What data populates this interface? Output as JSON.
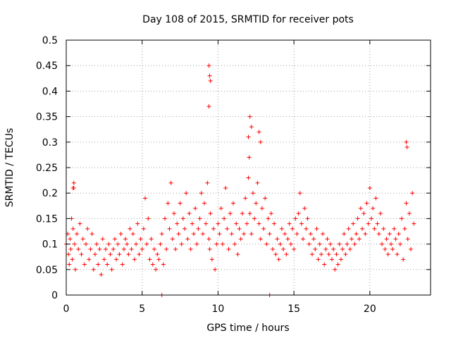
{
  "chart_data": {
    "type": "scatter",
    "title": "Day 108 of 2015, SRMTID for receiver pots",
    "xlabel": "GPS time / hours",
    "ylabel": "SRMTID / TECUs",
    "xlim": [
      0,
      24
    ],
    "ylim": [
      0,
      0.5
    ],
    "x_ticks": [
      0,
      5,
      10,
      15,
      20
    ],
    "x_tick_labels": [
      "0",
      "5",
      "10",
      "15",
      "20"
    ],
    "y_ticks": [
      0,
      0.05,
      0.1,
      0.15,
      0.2,
      0.25,
      0.3,
      0.35,
      0.4,
      0.45,
      0.5
    ],
    "y_tick_labels": [
      "0",
      "0.05",
      "0.1",
      "0.15",
      "0.2",
      "0.25",
      "0.3",
      "0.35",
      "0.4",
      "0.45",
      "0.5"
    ],
    "grid": true,
    "marker": "plus",
    "color": "#ff0000",
    "series": [
      {
        "name": "pots",
        "x": [
          0.0,
          0.1,
          0.15,
          0.2,
          0.25,
          0.3,
          0.35,
          0.4,
          0.45,
          0.5,
          0.55,
          0.6,
          0.7,
          0.8,
          0.9,
          1.0,
          1.1,
          1.2,
          1.3,
          1.4,
          1.5,
          1.6,
          1.7,
          1.8,
          1.9,
          2.0,
          2.1,
          2.2,
          2.3,
          2.4,
          2.5,
          2.6,
          2.7,
          2.8,
          2.9,
          3.0,
          3.1,
          3.2,
          3.3,
          3.4,
          3.5,
          3.6,
          3.7,
          3.8,
          3.9,
          4.0,
          4.1,
          4.2,
          4.3,
          4.4,
          4.5,
          4.6,
          4.7,
          4.8,
          4.9,
          5.0,
          5.1,
          5.2,
          5.3,
          5.4,
          5.5,
          5.6,
          5.7,
          5.8,
          5.9,
          6.0,
          6.1,
          6.2,
          6.3,
          6.4,
          6.5,
          6.6,
          6.7,
          6.8,
          6.9,
          7.0,
          7.1,
          7.2,
          7.3,
          7.4,
          7.5,
          7.6,
          7.7,
          7.8,
          7.9,
          8.0,
          8.1,
          8.2,
          8.3,
          8.4,
          8.5,
          8.6,
          8.7,
          8.8,
          8.9,
          9.0,
          9.1,
          9.2,
          9.3,
          9.4,
          9.45,
          9.5,
          9.6,
          9.7,
          9.8,
          9.9,
          10.0,
          10.1,
          10.2,
          10.3,
          10.4,
          10.5,
          10.6,
          10.7,
          10.8,
          10.9,
          11.0,
          11.1,
          11.2,
          11.3,
          11.4,
          11.5,
          11.6,
          11.7,
          11.8,
          11.9,
          12.0,
          12.05,
          12.1,
          12.2,
          12.3,
          12.4,
          12.5,
          12.6,
          12.7,
          12.8,
          12.9,
          13.0,
          13.1,
          13.2,
          13.3,
          13.4,
          13.5,
          13.6,
          13.7,
          13.8,
          13.9,
          14.0,
          14.1,
          14.2,
          14.3,
          14.4,
          14.5,
          14.6,
          14.7,
          14.8,
          14.9,
          15.0,
          15.1,
          15.2,
          15.3,
          15.4,
          15.5,
          15.6,
          15.7,
          15.8,
          15.9,
          16.0,
          16.1,
          16.2,
          16.3,
          16.4,
          16.5,
          16.6,
          16.7,
          16.8,
          16.9,
          17.0,
          17.1,
          17.2,
          17.3,
          17.4,
          17.5,
          17.6,
          17.7,
          17.8,
          17.9,
          18.0,
          18.1,
          18.2,
          18.3,
          18.4,
          18.5,
          18.6,
          18.7,
          18.8,
          18.9,
          19.0,
          19.1,
          19.2,
          19.3,
          19.4,
          19.5,
          19.6,
          19.7,
          19.8,
          19.9,
          20.0,
          20.1,
          20.2,
          20.3,
          20.4,
          20.5,
          20.6,
          20.7,
          20.8,
          20.9,
          21.0,
          21.1,
          21.2,
          21.3,
          21.4,
          21.5,
          21.6,
          21.7,
          21.8,
          21.9,
          22.0,
          22.1,
          22.2,
          22.3,
          22.4,
          22.5,
          22.6,
          22.7,
          22.8,
          22.9,
          9.4,
          9.45,
          9.5,
          9.4,
          12.1,
          12.2,
          12.0,
          12.7,
          12.8,
          22.4,
          22.45,
          6.3,
          13.4,
          0.5,
          0.45
        ],
        "y": [
          0.1,
          0.12,
          0.08,
          0.06,
          0.11,
          0.09,
          0.15,
          0.07,
          0.13,
          0.21,
          0.1,
          0.05,
          0.12,
          0.09,
          0.14,
          0.08,
          0.11,
          0.06,
          0.1,
          0.13,
          0.07,
          0.09,
          0.12,
          0.05,
          0.08,
          0.1,
          0.06,
          0.09,
          0.04,
          0.11,
          0.07,
          0.09,
          0.06,
          0.1,
          0.08,
          0.05,
          0.09,
          0.11,
          0.07,
          0.1,
          0.08,
          0.12,
          0.06,
          0.09,
          0.11,
          0.1,
          0.08,
          0.13,
          0.09,
          0.12,
          0.07,
          0.1,
          0.14,
          0.08,
          0.11,
          0.09,
          0.13,
          0.19,
          0.1,
          0.15,
          0.07,
          0.11,
          0.06,
          0.09,
          0.05,
          0.08,
          0.07,
          0.1,
          0.12,
          0.06,
          0.15,
          0.09,
          0.18,
          0.13,
          0.22,
          0.11,
          0.16,
          0.09,
          0.14,
          0.12,
          0.18,
          0.1,
          0.15,
          0.13,
          0.2,
          0.11,
          0.16,
          0.09,
          0.14,
          0.12,
          0.17,
          0.1,
          0.13,
          0.15,
          0.2,
          0.12,
          0.18,
          0.14,
          0.22,
          0.11,
          0.09,
          0.16,
          0.07,
          0.13,
          0.05,
          0.1,
          0.14,
          0.12,
          0.17,
          0.1,
          0.15,
          0.21,
          0.13,
          0.09,
          0.16,
          0.12,
          0.18,
          0.1,
          0.14,
          0.08,
          0.13,
          0.11,
          0.16,
          0.12,
          0.19,
          0.14,
          0.23,
          0.27,
          0.16,
          0.12,
          0.2,
          0.15,
          0.18,
          0.22,
          0.14,
          0.11,
          0.17,
          0.13,
          0.19,
          0.1,
          0.15,
          0.12,
          0.16,
          0.09,
          0.14,
          0.08,
          0.11,
          0.07,
          0.1,
          0.13,
          0.09,
          0.12,
          0.08,
          0.11,
          0.14,
          0.1,
          0.13,
          0.09,
          0.15,
          0.12,
          0.16,
          0.2,
          0.14,
          0.11,
          0.17,
          0.13,
          0.15,
          0.1,
          0.12,
          0.08,
          0.11,
          0.09,
          0.13,
          0.07,
          0.1,
          0.08,
          0.12,
          0.06,
          0.09,
          0.11,
          0.08,
          0.1,
          0.07,
          0.09,
          0.05,
          0.08,
          0.06,
          0.1,
          0.07,
          0.09,
          0.12,
          0.08,
          0.1,
          0.13,
          0.09,
          0.11,
          0.14,
          0.1,
          0.12,
          0.15,
          0.11,
          0.17,
          0.13,
          0.16,
          0.12,
          0.18,
          0.14,
          0.21,
          0.15,
          0.17,
          0.13,
          0.19,
          0.14,
          0.12,
          0.16,
          0.1,
          0.13,
          0.09,
          0.11,
          0.08,
          0.12,
          0.1,
          0.09,
          0.13,
          0.11,
          0.08,
          0.12,
          0.1,
          0.15,
          0.07,
          0.13,
          0.18,
          0.11,
          0.16,
          0.09,
          0.2,
          0.14,
          0.45,
          0.43,
          0.42,
          0.37,
          0.35,
          0.33,
          0.31,
          0.32,
          0.3,
          0.3,
          0.29,
          0.0,
          0.0,
          0.22,
          0.21
        ]
      }
    ]
  }
}
